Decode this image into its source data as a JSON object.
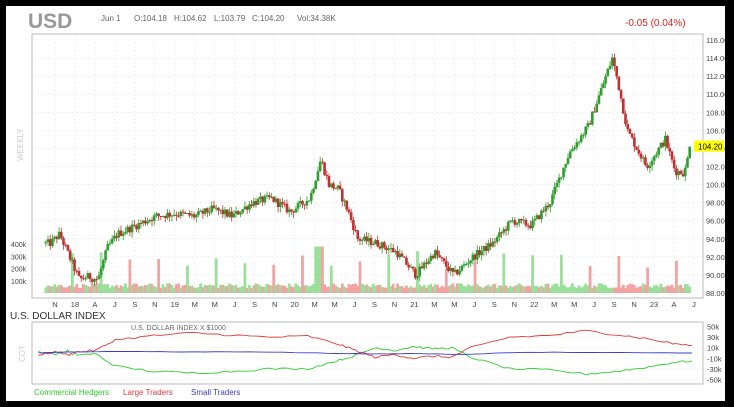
{
  "header": {
    "symbol": "USD",
    "date": "Jun 1",
    "open": "O:104.18",
    "high": "H:104.62",
    "low": "L:103.79",
    "close": "C:104.20",
    "volume": "Vol:34.38K",
    "change": "-0.05 (0.04%)",
    "period_label": "WEEKLY",
    "last_price": "104.20"
  },
  "cot_panel": {
    "title": "U.S. DOLLAR INDEX",
    "subtitle": "U.S. DOLLAR INDEX X $1000",
    "side_label": "COT",
    "legend": [
      {
        "label": "Commercial Hedgers",
        "color": "#2ecc2e"
      },
      {
        "label": "Large Traders",
        "color": "#e03c3c"
      },
      {
        "label": "Small Traders",
        "color": "#3a3ad0"
      }
    ],
    "y_ticks": [
      "50k",
      "30k",
      "10k",
      "-10k",
      "-30k",
      "-50k"
    ]
  },
  "colors": {
    "up": "#2e9e2e",
    "down": "#c03030",
    "vol_up": "#9adf9a",
    "vol_down": "#f3a3a3",
    "change": "#e02020",
    "highlight": "#ffff00"
  },
  "chart_data": [
    {
      "type": "candlestick",
      "title": "USD",
      "period": "weekly",
      "x_tick_labels": [
        "N",
        "18",
        "A",
        "J",
        "S",
        "N",
        "19",
        "M",
        "M",
        "J",
        "S",
        "N",
        "20",
        "M",
        "M",
        "J",
        "S",
        "N",
        "21",
        "M",
        "M",
        "J",
        "S",
        "N",
        "22",
        "M",
        "M",
        "J",
        "S",
        "N",
        "23",
        "A",
        "J"
      ],
      "y_ticks": [
        "116.00",
        "114.00",
        "112.00",
        "110.00",
        "108.00",
        "106.00",
        "104.00",
        "102.00",
        "100.00",
        "98.00",
        "96.00",
        "94.00",
        "92.00",
        "90.00",
        "88.00"
      ],
      "ylim": [
        87.5,
        116.5
      ],
      "grid": true,
      "last_value": 104.2,
      "price_path": [
        [
          "2017-11",
          93.5
        ],
        [
          "2017-12",
          94.5
        ],
        [
          "2018-01",
          92.0
        ],
        [
          "2018-02",
          89.5
        ],
        [
          "2018-03",
          89.8
        ],
        [
          "2018-04",
          89.5
        ],
        [
          "2018-05",
          93.0
        ],
        [
          "2018-06",
          94.5
        ],
        [
          "2018-08",
          95.5
        ],
        [
          "2018-10",
          96.5
        ],
        [
          "2018-12",
          96.8
        ],
        [
          "2019-02",
          96.5
        ],
        [
          "2019-04",
          97.3
        ],
        [
          "2019-06",
          96.5
        ],
        [
          "2019-08",
          98.0
        ],
        [
          "2019-10",
          98.5
        ],
        [
          "2019-12",
          97.0
        ],
        [
          "2020-02",
          98.5
        ],
        [
          "2020-03-20",
          102.8
        ],
        [
          "2020-04",
          100.0
        ],
        [
          "2020-05",
          99.5
        ],
        [
          "2020-06",
          97.0
        ],
        [
          "2020-07",
          94.0
        ],
        [
          "2020-09",
          93.5
        ],
        [
          "2020-11",
          92.5
        ],
        [
          "2021-01",
          90.0
        ],
        [
          "2021-03",
          92.5
        ],
        [
          "2021-05",
          90.0
        ],
        [
          "2021-07",
          92.0
        ],
        [
          "2021-09",
          93.5
        ],
        [
          "2021-11",
          96.0
        ],
        [
          "2022-01",
          95.5
        ],
        [
          "2022-03",
          98.0
        ],
        [
          "2022-05",
          103.5
        ],
        [
          "2022-07",
          106.5
        ],
        [
          "2022-09-28",
          114.0
        ],
        [
          "2022-10",
          111.5
        ],
        [
          "2022-11",
          106.0
        ],
        [
          "2022-12",
          104.0
        ],
        [
          "2023-01",
          102.0
        ],
        [
          "2023-03",
          105.0
        ],
        [
          "2023-04",
          101.5
        ],
        [
          "2023-05",
          101.3
        ],
        [
          "2023-06-01",
          104.2
        ]
      ],
      "volume_ticks": [
        "400k",
        "300k",
        "200k",
        "100k"
      ]
    },
    {
      "type": "line",
      "title": "U.S. DOLLAR INDEX",
      "x_range": [
        "2017-10",
        "2023-06"
      ],
      "ylim": [
        -55000,
        55000
      ],
      "series": [
        {
          "name": "Commercial Hedgers",
          "values": [
            [
              "2017-10",
              3000
            ],
            [
              "2017-12",
              -2000
            ],
            [
              "2018-01",
              4000
            ],
            [
              "2018-02",
              -3000
            ],
            [
              "2018-04",
              -2000
            ],
            [
              "2018-06",
              -25000
            ],
            [
              "2018-10",
              -35000
            ],
            [
              "2019-02",
              -38000
            ],
            [
              "2019-06",
              -35000
            ],
            [
              "2019-10",
              -30000
            ],
            [
              "2020-02",
              -30000
            ],
            [
              "2020-05",
              -15000
            ],
            [
              "2020-07",
              -5000
            ],
            [
              "2020-09",
              10000
            ],
            [
              "2020-11",
              5000
            ],
            [
              "2021-01",
              12000
            ],
            [
              "2021-03",
              8000
            ],
            [
              "2021-05",
              10000
            ],
            [
              "2021-07",
              -8000
            ],
            [
              "2021-11",
              -30000
            ],
            [
              "2022-03",
              -32000
            ],
            [
              "2022-07",
              -40000
            ],
            [
              "2022-10",
              -35000
            ],
            [
              "2023-01",
              -28000
            ],
            [
              "2023-04",
              -18000
            ],
            [
              "2023-06",
              -15000
            ]
          ]
        },
        {
          "name": "Large Traders",
          "values": [
            [
              "2017-10",
              -5000
            ],
            [
              "2017-12",
              3000
            ],
            [
              "2018-01",
              -4000
            ],
            [
              "2018-02",
              2000
            ],
            [
              "2018-04",
              5000
            ],
            [
              "2018-06",
              25000
            ],
            [
              "2018-10",
              33000
            ],
            [
              "2019-02",
              38000
            ],
            [
              "2019-06",
              34000
            ],
            [
              "2019-10",
              30000
            ],
            [
              "2020-02",
              32000
            ],
            [
              "2020-05",
              18000
            ],
            [
              "2020-07",
              5000
            ],
            [
              "2020-09",
              -8000
            ],
            [
              "2020-11",
              -3000
            ],
            [
              "2021-01",
              -10000
            ],
            [
              "2021-03",
              -6000
            ],
            [
              "2021-05",
              -8000
            ],
            [
              "2021-07",
              10000
            ],
            [
              "2021-11",
              30000
            ],
            [
              "2022-03",
              33000
            ],
            [
              "2022-07",
              42000
            ],
            [
              "2022-10",
              35000
            ],
            [
              "2023-01",
              28000
            ],
            [
              "2023-04",
              18000
            ],
            [
              "2023-06",
              14000
            ]
          ]
        },
        {
          "name": "Small Traders",
          "values": [
            [
              "2017-10",
              0
            ],
            [
              "2018-01",
              2000
            ],
            [
              "2018-06",
              3000
            ],
            [
              "2019-01",
              2000
            ],
            [
              "2019-08",
              2500
            ],
            [
              "2020-03",
              0
            ],
            [
              "2020-09",
              -2000
            ],
            [
              "2021-01",
              -1000
            ],
            [
              "2021-06",
              -2500
            ],
            [
              "2022-01",
              1500
            ],
            [
              "2022-09",
              1000
            ],
            [
              "2023-06",
              0
            ]
          ]
        }
      ]
    }
  ]
}
